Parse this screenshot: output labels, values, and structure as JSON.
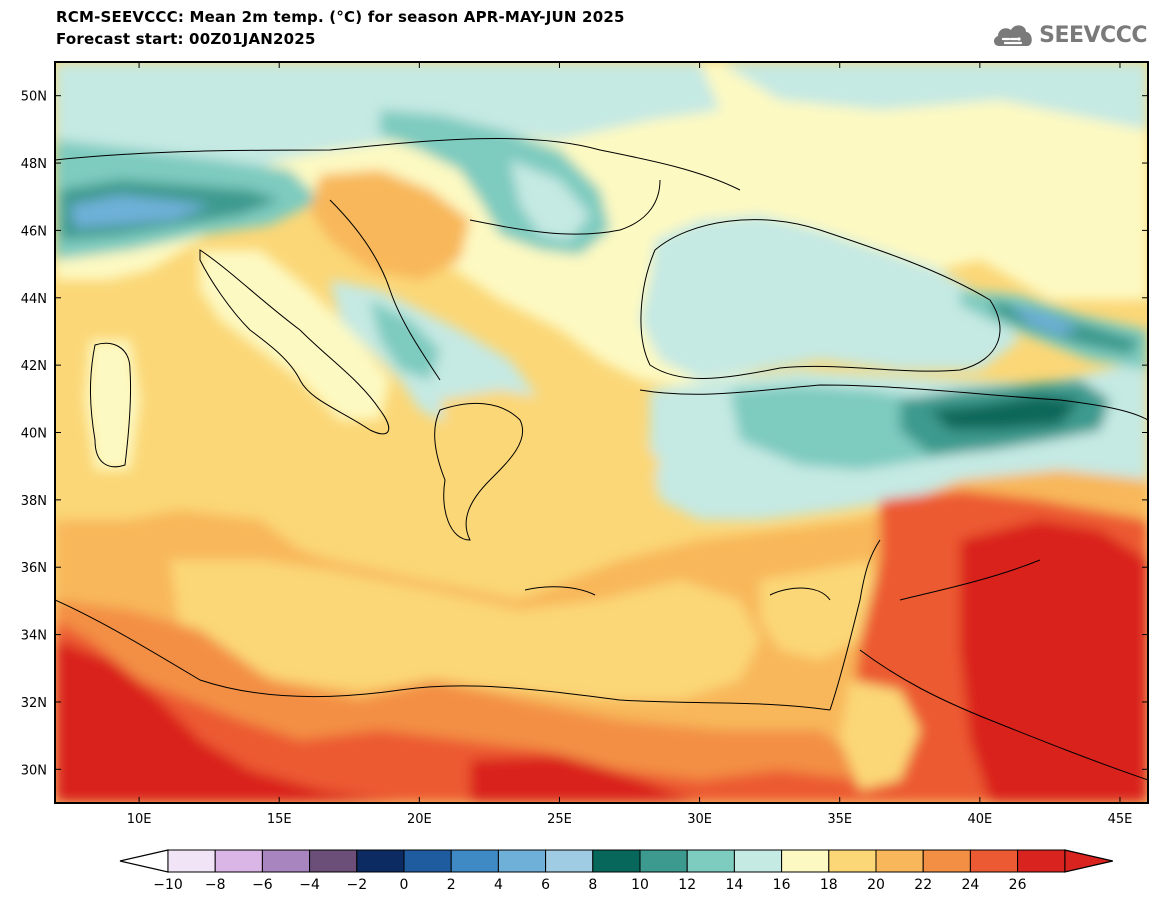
{
  "title": {
    "line1": "RCM-SEEVCCC: Mean 2m temp. (°C) for season APR-MAY-JUN 2025",
    "line2": "Forecast start: 00Z01JAN2025"
  },
  "logo": {
    "text": "SEEVCCC",
    "icon": "cloud-icon"
  },
  "map": {
    "lat_labels": [
      "50N",
      "48N",
      "46N",
      "44N",
      "42N",
      "40N",
      "38N",
      "36N",
      "34N",
      "32N",
      "30N"
    ],
    "lon_labels": [
      "10E",
      "15E",
      "20E",
      "25E",
      "30E",
      "35E",
      "40E",
      "45E"
    ],
    "lat_range": [
      29,
      51
    ],
    "lon_range": [
      7,
      46
    ]
  },
  "colorbar": {
    "labels": [
      "−10",
      "−8",
      "−6",
      "−4",
      "−2",
      "0",
      "2",
      "4",
      "6",
      "8",
      "10",
      "12",
      "14",
      "16",
      "18",
      "20",
      "22",
      "24",
      "26"
    ],
    "colors": [
      "#f1e4f6",
      "#dab6e6",
      "#a985bf",
      "#6b4f79",
      "#0c2b63",
      "#1f5c9f",
      "#3f8ac4",
      "#6eb0d8",
      "#9fcbe3",
      "#07675a",
      "#3c9a8e",
      "#7ecbbf",
      "#c5e9e3",
      "#fdf9c2",
      "#fbd777",
      "#f8b75a",
      "#f38f45",
      "#ec5a33",
      "#d9231f"
    ],
    "under_color": "#ffffff",
    "over_color": "#d9231f"
  }
}
